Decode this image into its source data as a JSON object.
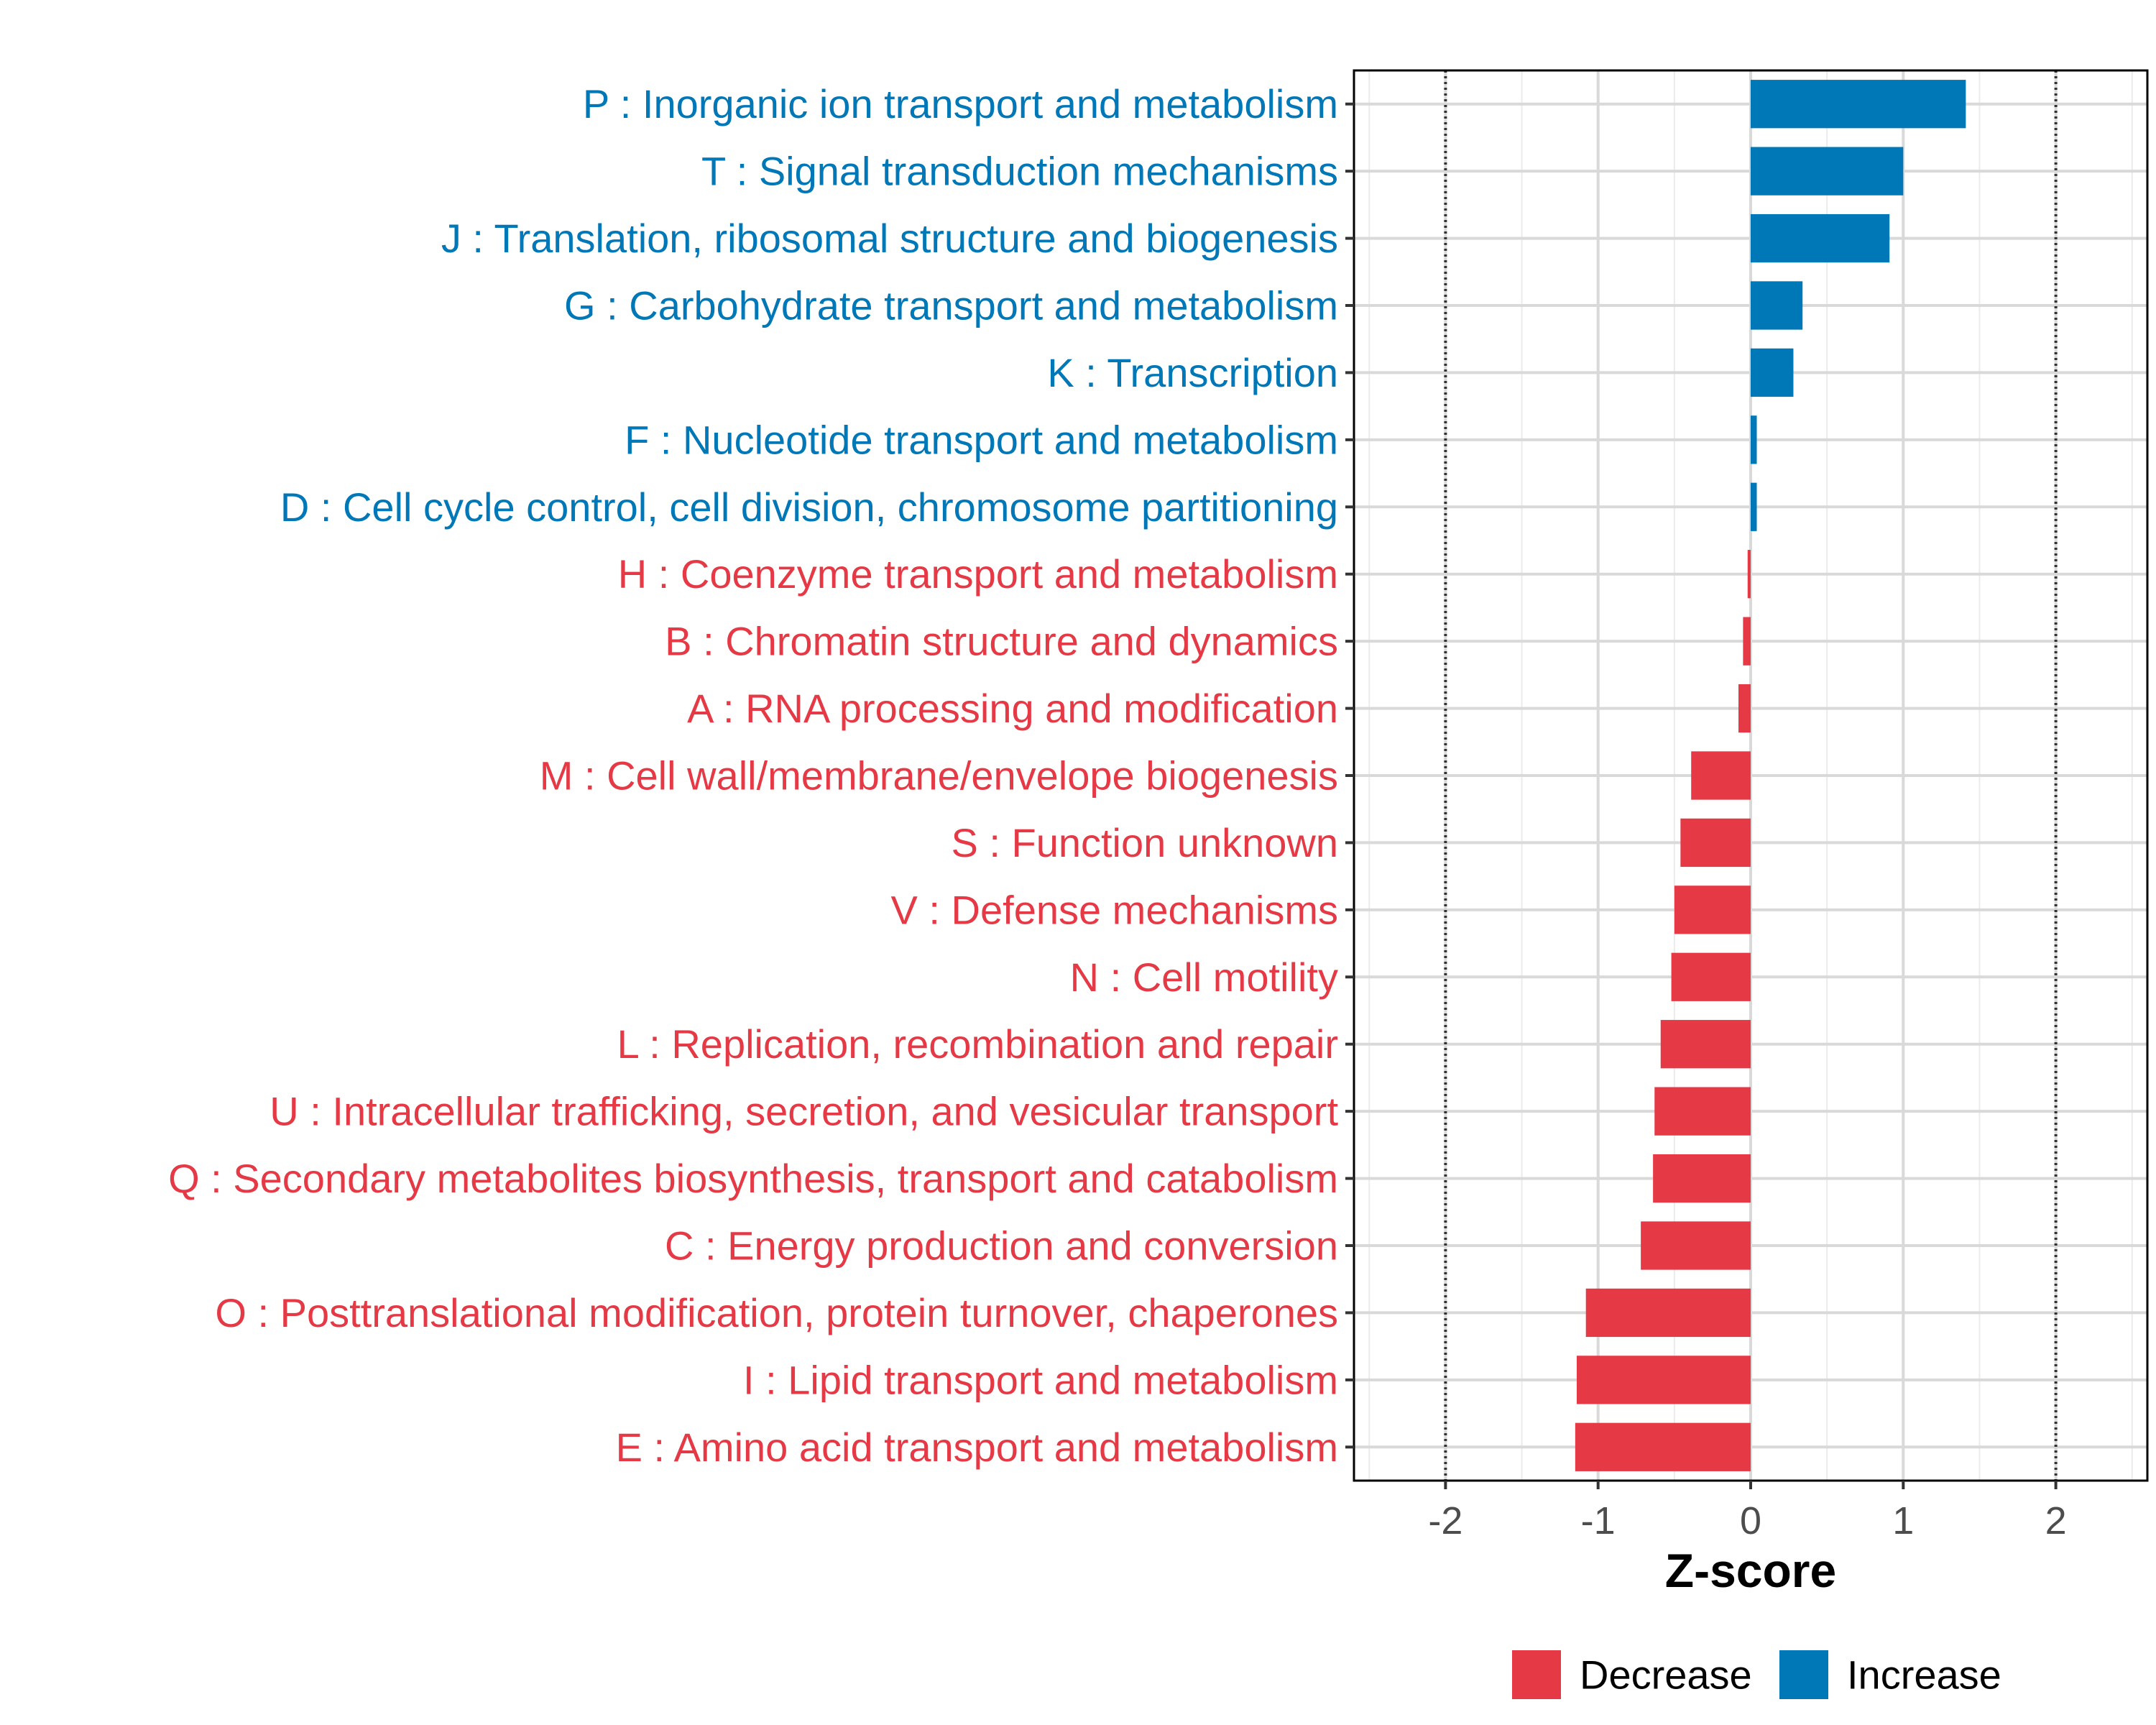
{
  "chart_data": {
    "type": "bar",
    "orientation": "horizontal",
    "title": "",
    "xlabel": "Z-score",
    "ylabel": "",
    "xlim": [
      -2.6,
      2.6
    ],
    "xticks": [
      -2,
      -1,
      0,
      1,
      2
    ],
    "xtick_labels": [
      "-2",
      "-1",
      "0",
      "1",
      "2"
    ],
    "reference_lines": [
      -2,
      2
    ],
    "grid": true,
    "categories": [
      "P : Inorganic ion transport and metabolism",
      "T : Signal transduction mechanisms",
      "J : Translation, ribosomal structure and biogenesis",
      "G : Carbohydrate transport and metabolism",
      "K : Transcription",
      "F : Nucleotide transport and metabolism",
      "D : Cell cycle control, cell division, chromosome partitioning",
      "H : Coenzyme transport and metabolism",
      "B : Chromatin structure and dynamics",
      "A : RNA processing and modification",
      "M : Cell wall/membrane/envelope biogenesis",
      "S : Function unknown",
      "V : Defense mechanisms",
      "N : Cell motility",
      "L : Replication, recombination and repair",
      "U : Intracellular trafficking, secretion, and vesicular transport",
      "Q : Secondary metabolites biosynthesis, transport and catabolism",
      "C : Energy production and conversion",
      "O : Posttranslational modification, protein turnover, chaperones",
      "I : Lipid transport and metabolism",
      "E : Amino acid transport and metabolism"
    ],
    "values": [
      1.41,
      1.0,
      0.91,
      0.34,
      0.28,
      0.04,
      0.04,
      -0.02,
      -0.05,
      -0.08,
      -0.39,
      -0.46,
      -0.5,
      -0.52,
      -0.59,
      -0.63,
      -0.64,
      -0.72,
      -1.08,
      -1.14,
      -1.15
    ],
    "groups": [
      "Increase",
      "Increase",
      "Increase",
      "Increase",
      "Increase",
      "Increase",
      "Increase",
      "Decrease",
      "Decrease",
      "Decrease",
      "Decrease",
      "Decrease",
      "Decrease",
      "Decrease",
      "Decrease",
      "Decrease",
      "Decrease",
      "Decrease",
      "Decrease",
      "Decrease",
      "Decrease"
    ],
    "legend": {
      "placement": "bottom",
      "entries": [
        {
          "label": "Decrease",
          "color": "#e63946"
        },
        {
          "label": "Increase",
          "color": "#0077b6"
        }
      ]
    },
    "colors": {
      "Decrease": "#e63946",
      "Increase": "#0077b6"
    }
  }
}
